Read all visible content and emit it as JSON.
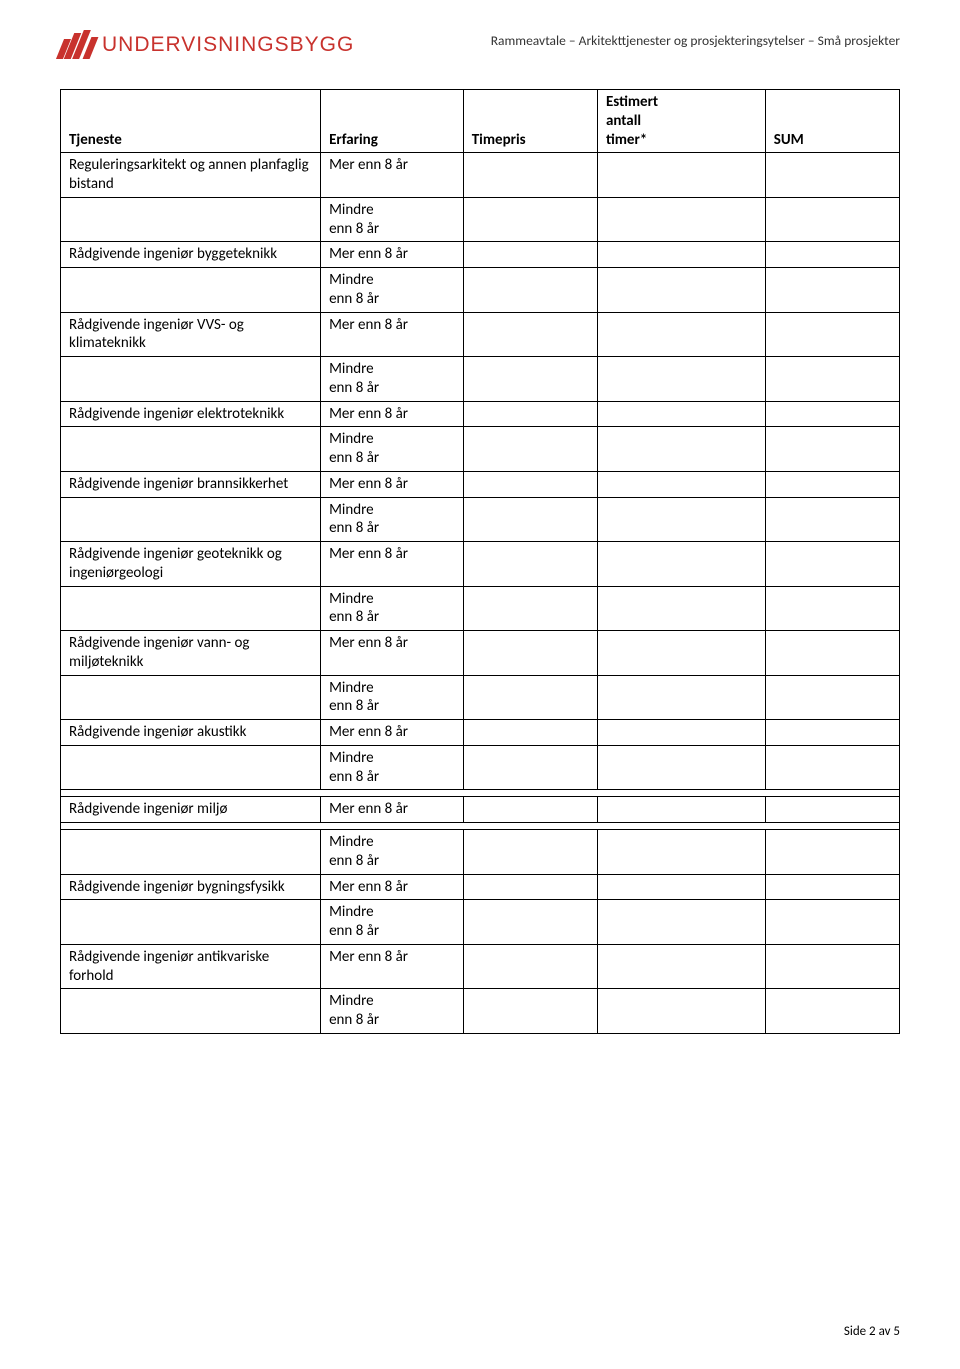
{
  "page": {
    "logo_text": "UNDERVISNINGSBYGG",
    "header_title": "Rammeavtale – Arkitekttjenester og prosjekteringsytelser – Små prosjekter",
    "footer": "Side 2 av 5"
  },
  "table": {
    "columns": {
      "tjeneste": "Tjeneste",
      "erfaring": "Erfaring",
      "timepris": "Timepris",
      "estimert": "Estimert antall timer*",
      "sum": "SUM"
    },
    "mer": "Mer enn 8 år",
    "mindre": "Mindre enn 8 år",
    "services": [
      "Reguleringsarkitekt og annen planfaglig bistand",
      "Rådgivende ingeniør byggeteknikk",
      "Rådgivende ingeniør VVS- og klimateknikk",
      "Rådgivende ingeniør elektroteknikk",
      "Rådgivende ingeniør brannsikkerhet",
      "Rådgivende ingeniør geoteknikk og ingeniørgeologi",
      "Rådgivende ingeniør vann- og miljøteknikk",
      "Rådgivende ingeniør akustikk",
      "Rådgivende ingeniør miljø",
      "Rådgivende ingeniør bygningsfysikk",
      "Rådgivende ingeniør antikvariske forhold"
    ]
  },
  "colors": {
    "brand_red": "#c8322d",
    "text": "#000000",
    "border": "#000000",
    "background": "#ffffff"
  }
}
